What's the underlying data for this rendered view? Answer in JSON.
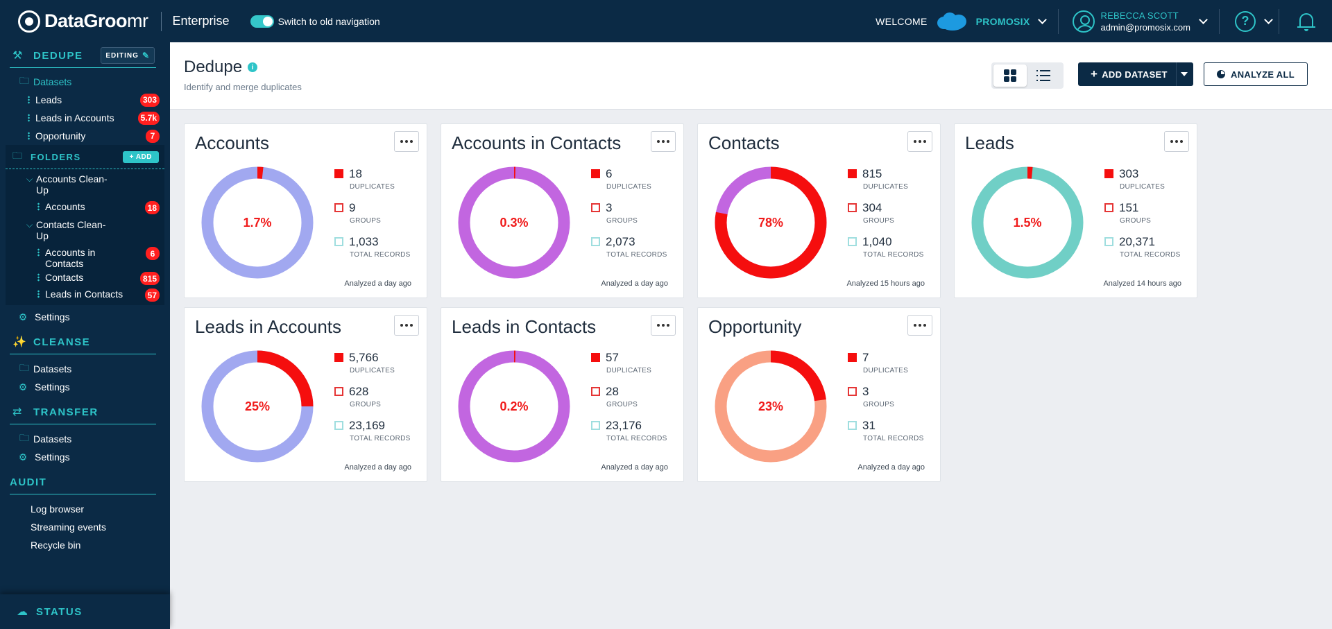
{
  "topbar": {
    "logo_bold": "DataGroo",
    "logo_light": "mr",
    "edition": "Enterprise",
    "old_nav_label": "Switch to old navigation",
    "welcome": "WELCOME",
    "org": "PROMOSIX",
    "user_name": "REBECCA SCOTT",
    "user_email": "admin@promosix.com",
    "help": "?"
  },
  "sidebar": {
    "dedupe": {
      "title": "DEDUPE",
      "editing": "EDITING",
      "datasets_label": "Datasets",
      "datasets": [
        {
          "label": "Leads",
          "count": "303"
        },
        {
          "label": "Leads in Accounts",
          "count": "5.7k"
        },
        {
          "label": "Opportunity",
          "count": "7"
        }
      ],
      "folders_title": "FOLDERS",
      "add_label": "ADD",
      "folders": [
        {
          "name": "Accounts Clean-Up",
          "items": [
            {
              "label": "Accounts",
              "count": "18"
            }
          ]
        },
        {
          "name": "Contacts Clean-Up",
          "items": [
            {
              "label": "Accounts in Contacts",
              "count": "6"
            },
            {
              "label": "Contacts",
              "count": "815"
            },
            {
              "label": "Leads in Contacts",
              "count": "57"
            }
          ]
        }
      ],
      "settings": "Settings"
    },
    "cleanse": {
      "title": "CLEANSE",
      "datasets": "Datasets",
      "settings": "Settings"
    },
    "transfer": {
      "title": "TRANSFER",
      "datasets": "Datasets",
      "settings": "Settings"
    },
    "audit": {
      "title": "AUDIT",
      "items": [
        "Log browser",
        "Streaming events",
        "Recycle bin"
      ]
    },
    "status": "STATUS"
  },
  "page": {
    "title": "Dedupe",
    "subtitle": "Identify and merge duplicates",
    "add_dataset": "ADD DATASET",
    "analyze_all": "ANALYZE ALL"
  },
  "legend_labels": {
    "duplicates": "DUPLICATES",
    "groups": "GROUPS",
    "total": "TOTAL RECORDS"
  },
  "chart_data": [
    {
      "type": "pie",
      "title": "Accounts",
      "percent_label": "1.7%",
      "fraction": 0.017,
      "base_color": "#a1a8f0",
      "dup_color": "#f50e0e",
      "duplicates": "18",
      "groups": "9",
      "total_records": "1,033",
      "analyzed": "Analyzed a day ago"
    },
    {
      "type": "pie",
      "title": "Accounts in Contacts",
      "percent_label": "0.3%",
      "fraction": 0.003,
      "base_color": "#c266e0",
      "dup_color": "#f50e0e",
      "duplicates": "6",
      "groups": "3",
      "total_records": "2,073",
      "analyzed": "Analyzed a day ago"
    },
    {
      "type": "pie",
      "title": "Contacts",
      "percent_label": "78%",
      "fraction": 0.78,
      "base_color": "#c266e0",
      "dup_color": "#f50e0e",
      "duplicates": "815",
      "groups": "304",
      "total_records": "1,040",
      "analyzed": "Analyzed 15 hours ago"
    },
    {
      "type": "pie",
      "title": "Leads",
      "percent_label": "1.5%",
      "fraction": 0.015,
      "base_color": "#70cfc6",
      "dup_color": "#f50e0e",
      "duplicates": "303",
      "groups": "151",
      "total_records": "20,371",
      "analyzed": "Analyzed 14 hours ago"
    },
    {
      "type": "pie",
      "title": "Leads in Accounts",
      "percent_label": "25%",
      "fraction": 0.25,
      "base_color": "#a1a8f0",
      "dup_color": "#f50e0e",
      "duplicates": "5,766",
      "groups": "628",
      "total_records": "23,169",
      "analyzed": "Analyzed a day ago"
    },
    {
      "type": "pie",
      "title": "Leads in Contacts",
      "percent_label": "0.2%",
      "fraction": 0.002,
      "base_color": "#c266e0",
      "dup_color": "#f50e0e",
      "duplicates": "57",
      "groups": "28",
      "total_records": "23,176",
      "analyzed": "Analyzed a day ago"
    },
    {
      "type": "pie",
      "title": "Opportunity",
      "percent_label": "23%",
      "fraction": 0.23,
      "base_color": "#f9a083",
      "dup_color": "#f50e0e",
      "duplicates": "7",
      "groups": "3",
      "total_records": "31",
      "analyzed": "Analyzed a day ago"
    }
  ]
}
